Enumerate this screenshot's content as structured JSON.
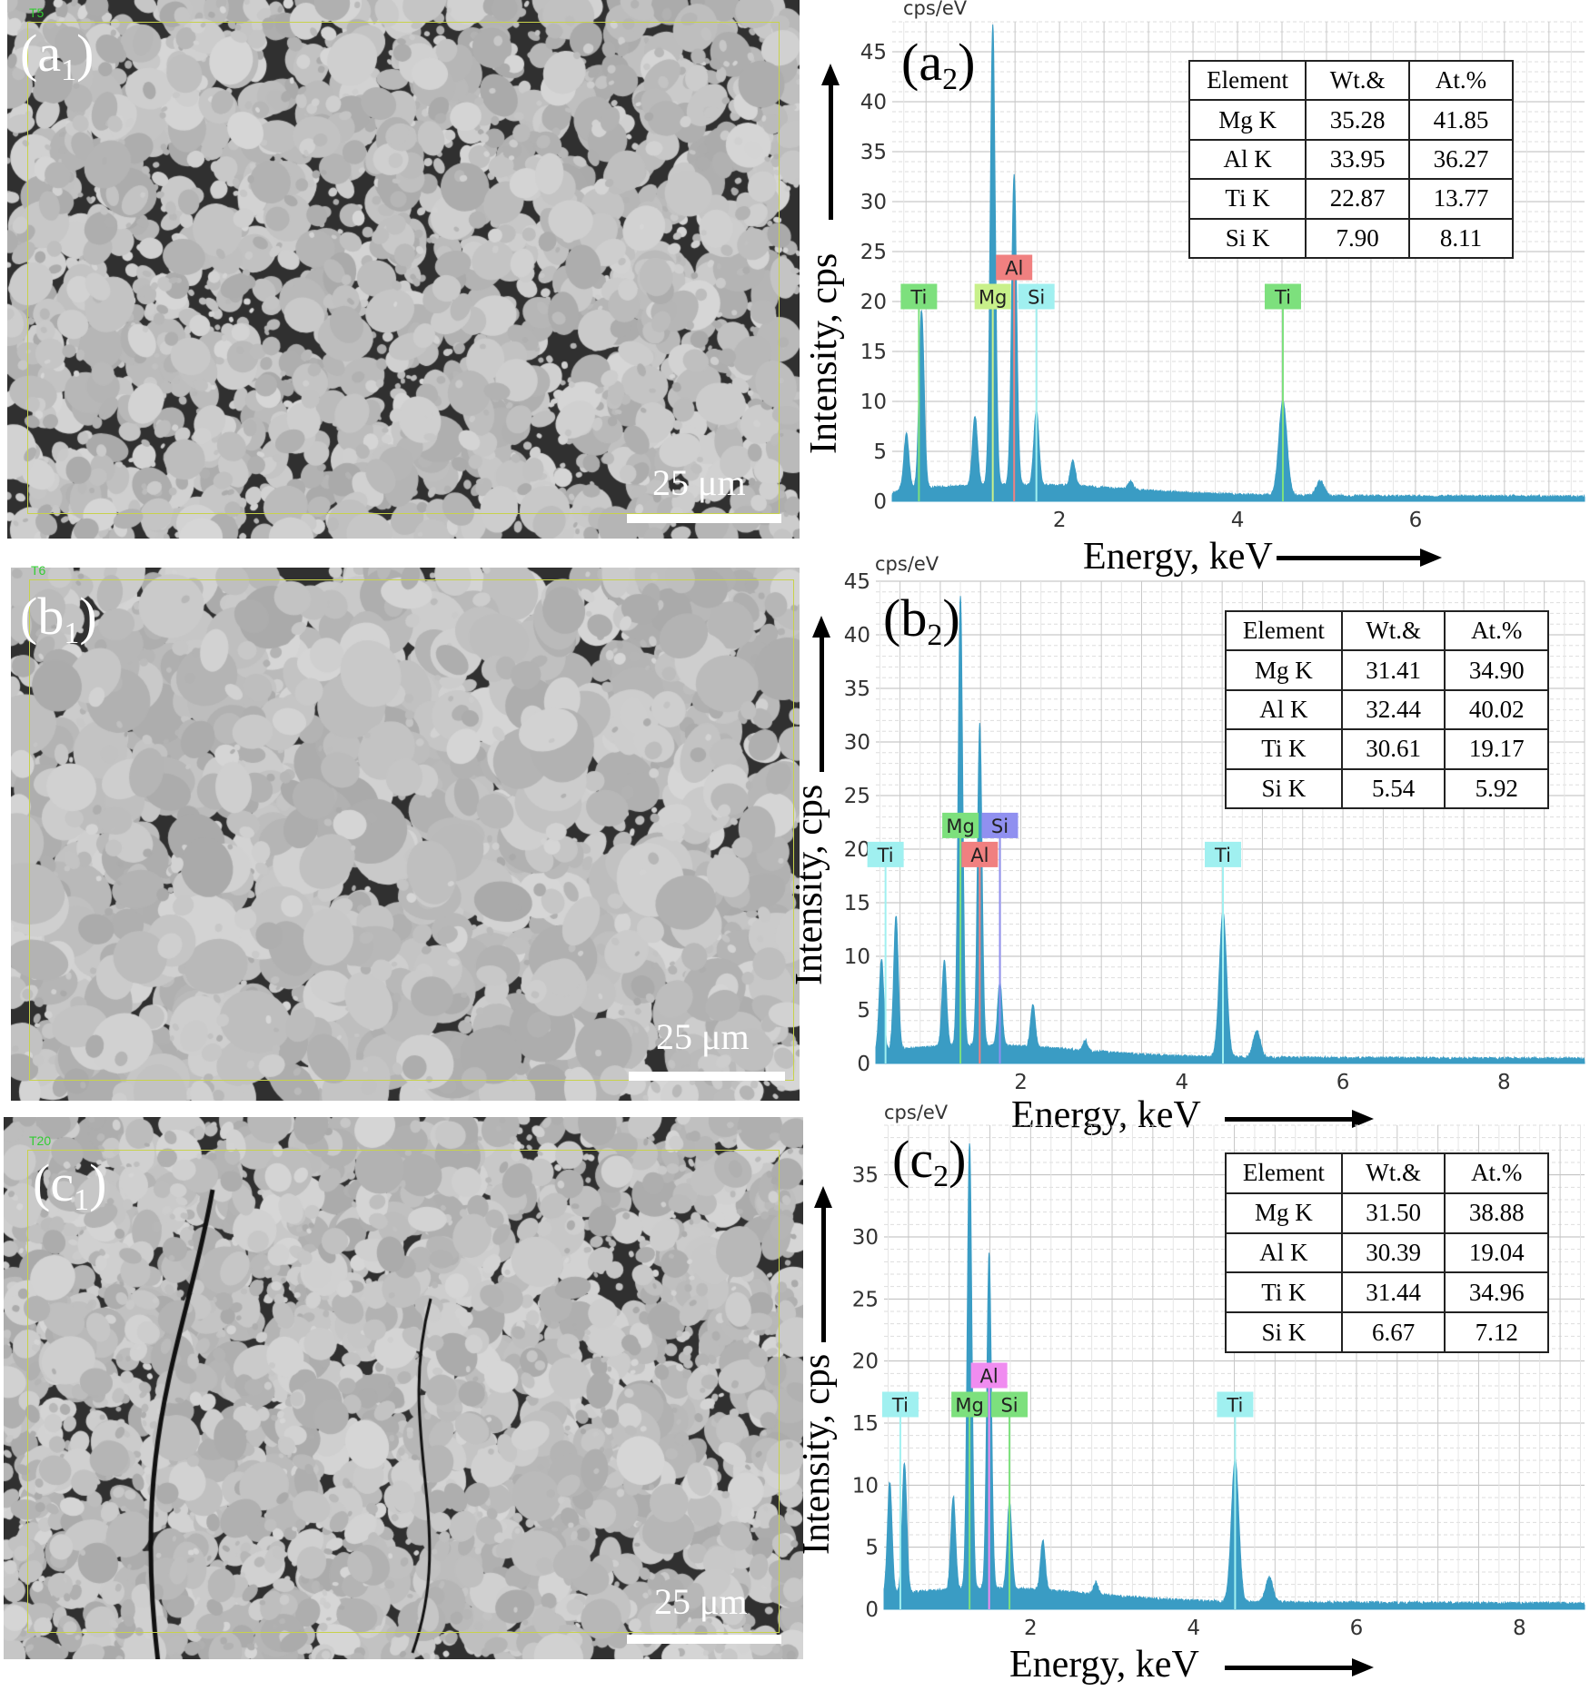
{
  "panels": [
    {
      "id": "a",
      "image_label": "a",
      "image_sub": "1",
      "chart_label": "a",
      "chart_sub": "2",
      "scale_text": "25 μm",
      "corner_text": "T5"
    },
    {
      "id": "b",
      "image_label": "b",
      "image_sub": "1",
      "chart_label": "b",
      "chart_sub": "2",
      "scale_text": "25 μm",
      "corner_text": "T6"
    },
    {
      "id": "c",
      "image_label": "c",
      "image_sub": "1",
      "chart_label": "c",
      "chart_sub": "2",
      "scale_text": "25 μm",
      "corner_text": "T20"
    }
  ],
  "chart_data": [
    {
      "type": "area",
      "unit_label": "cps/eV",
      "xlabel": "Energy, keV",
      "ylabel": "Intensity, cps",
      "xlim": [
        0.12,
        7.9
      ],
      "ylim": [
        0,
        48
      ],
      "xticks": [
        2,
        4,
        6
      ],
      "yticks": [
        0,
        5,
        10,
        15,
        20,
        25,
        30,
        35,
        40,
        45
      ],
      "grid": true,
      "series_color": "#3a9cc4",
      "peaks": [
        {
          "keV": 0.28,
          "cps": 5.5
        },
        {
          "keV": 0.45,
          "cps": 17.8
        },
        {
          "keV": 1.05,
          "cps": 7
        },
        {
          "keV": 1.25,
          "cps": 46
        },
        {
          "keV": 1.49,
          "cps": 31
        },
        {
          "keV": 1.74,
          "cps": 7.5
        },
        {
          "keV": 2.15,
          "cps": 2.5
        },
        {
          "keV": 2.8,
          "cps": 0.8
        },
        {
          "keV": 4.51,
          "cps": 9.5
        },
        {
          "keV": 4.93,
          "cps": 1.5
        }
      ],
      "markers": [
        {
          "text": "Ti",
          "keV": 0.42,
          "cps": 20.5,
          "color": "#7de07d"
        },
        {
          "text": "Mg",
          "keV": 1.25,
          "cps": 20.5,
          "color": "#c8f08a"
        },
        {
          "text": "Al",
          "keV": 1.49,
          "cps": 23,
          "color": "#f08080"
        },
        {
          "text": "Si",
          "keV": 1.74,
          "cps": 20.5,
          "color": "#a0f0f0"
        },
        {
          "text": "Ti",
          "keV": 4.51,
          "cps": 20.5,
          "color": "#7de07d"
        }
      ],
      "table": {
        "headers": [
          "Element",
          "Wt.&",
          "At.%"
        ],
        "rows": [
          [
            "Mg K",
            "35.28",
            "41.85"
          ],
          [
            "Al K",
            "33.95",
            "36.27"
          ],
          [
            "Ti K",
            "22.87",
            "13.77"
          ],
          [
            "Si K",
            "7.90",
            "8.11"
          ]
        ]
      }
    },
    {
      "type": "area",
      "unit_label": "cps/eV",
      "xlabel": "Energy, keV",
      "ylabel": "Intensity, cps",
      "xlim": [
        0.2,
        9.0
      ],
      "ylim": [
        0,
        45
      ],
      "xticks": [
        2,
        4,
        6,
        8
      ],
      "yticks": [
        0,
        5,
        10,
        15,
        20,
        25,
        30,
        35,
        40,
        45
      ],
      "grid": true,
      "series_color": "#3a9cc4",
      "peaks": [
        {
          "keV": 0.27,
          "cps": 8.5
        },
        {
          "keV": 0.45,
          "cps": 12.5
        },
        {
          "keV": 1.05,
          "cps": 8
        },
        {
          "keV": 1.25,
          "cps": 42
        },
        {
          "keV": 1.49,
          "cps": 30
        },
        {
          "keV": 1.74,
          "cps": 6
        },
        {
          "keV": 2.15,
          "cps": 4
        },
        {
          "keV": 2.8,
          "cps": 1
        },
        {
          "keV": 4.51,
          "cps": 13.5
        },
        {
          "keV": 4.93,
          "cps": 2.5
        }
      ],
      "markers": [
        {
          "text": "Ti",
          "keV": 0.32,
          "cps": 19.5,
          "color": "#a0f0f0"
        },
        {
          "text": "Mg",
          "keV": 1.25,
          "cps": 21.7,
          "color": "#7de07d"
        },
        {
          "text": "Si",
          "keV": 1.74,
          "cps": 21.7,
          "color": "#9090f0"
        },
        {
          "text": "Al",
          "keV": 1.49,
          "cps": 19.5,
          "color": "#f08080"
        },
        {
          "text": "Ti",
          "keV": 4.51,
          "cps": 19.5,
          "color": "#a0f0f0"
        }
      ],
      "table": {
        "headers": [
          "Element",
          "Wt.&",
          "At.%"
        ],
        "rows": [
          [
            "Mg K",
            "31.41",
            "34.90"
          ],
          [
            "Al K",
            "32.44",
            "40.02"
          ],
          [
            "Ti K",
            "30.61",
            "19.17"
          ],
          [
            "Si K",
            "5.54",
            "5.92"
          ]
        ]
      }
    },
    {
      "type": "area",
      "unit_label": "cps/eV",
      "xlabel": "Energy, keV",
      "ylabel": "Intensity, cps",
      "xlim": [
        0.2,
        8.8
      ],
      "ylim": [
        0,
        39
      ],
      "xticks": [
        2,
        4,
        6,
        8
      ],
      "yticks": [
        0,
        5,
        10,
        15,
        20,
        25,
        30,
        35
      ],
      "grid": true,
      "series_color": "#3a9cc4",
      "peaks": [
        {
          "keV": 0.27,
          "cps": 9
        },
        {
          "keV": 0.45,
          "cps": 10.5
        },
        {
          "keV": 1.05,
          "cps": 7.5
        },
        {
          "keV": 1.25,
          "cps": 36
        },
        {
          "keV": 1.49,
          "cps": 27
        },
        {
          "keV": 1.74,
          "cps": 7
        },
        {
          "keV": 2.15,
          "cps": 4
        },
        {
          "keV": 2.8,
          "cps": 1
        },
        {
          "keV": 4.51,
          "cps": 11.5
        },
        {
          "keV": 4.93,
          "cps": 2
        }
      ],
      "markers": [
        {
          "text": "Ti",
          "keV": 0.4,
          "cps": 16.5,
          "color": "#a0f0f0"
        },
        {
          "text": "Mg",
          "keV": 1.25,
          "cps": 16.5,
          "color": "#7de07d"
        },
        {
          "text": "Al",
          "keV": 1.49,
          "cps": 18.3,
          "color": "#f08cf0"
        },
        {
          "text": "Si",
          "keV": 1.74,
          "cps": 16.5,
          "color": "#7de07d"
        },
        {
          "text": "Ti",
          "keV": 4.51,
          "cps": 16.5,
          "color": "#a0f0f0"
        }
      ],
      "table": {
        "headers": [
          "Element",
          "Wt.&",
          "At.%"
        ],
        "rows": [
          [
            "Mg K",
            "31.50",
            "38.88"
          ],
          [
            "Al K",
            "30.39",
            "19.04"
          ],
          [
            "Ti K",
            "31.44",
            "34.96"
          ],
          [
            "Si K",
            "6.67",
            "7.12"
          ]
        ]
      }
    }
  ]
}
